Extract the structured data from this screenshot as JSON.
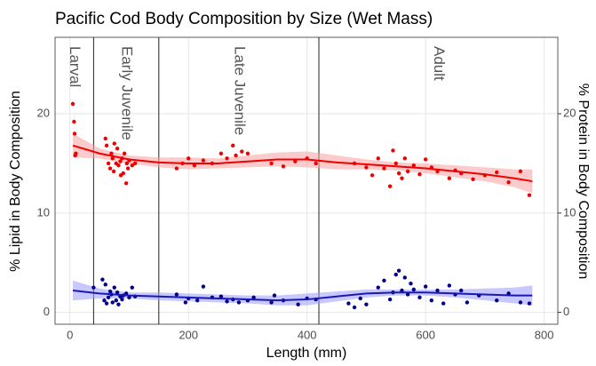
{
  "chart_data": {
    "type": "scatter",
    "title": "Pacific Cod Body Composition by Size (Wet Mass)",
    "xlabel": "Length (mm)",
    "ylabel": "% Lipid in Body Composition",
    "y2label": "% Protein in Body Composition",
    "xlim": [
      -25,
      823
    ],
    "ylim": [
      -1.2,
      27.7
    ],
    "y2lim": [
      -1.2,
      27.7
    ],
    "xticks": [
      0,
      200,
      400,
      600,
      800
    ],
    "yticks": [
      0,
      10,
      20
    ],
    "y2ticks": [
      0,
      10,
      20
    ],
    "grid": true,
    "vlines": [
      40,
      150,
      420
    ],
    "stage_labels": [
      "Larval",
      "Early Juvenile",
      "Late Juvenile",
      "Adult"
    ],
    "series": [
      {
        "color": "#f00000",
        "x": [
          5,
          7,
          8,
          10,
          9,
          60,
          62,
          65,
          68,
          70,
          72,
          74,
          75,
          78,
          80,
          82,
          85,
          86,
          88,
          90,
          92,
          95,
          96,
          98,
          100,
          105,
          110,
          180,
          190,
          200,
          210,
          225,
          240,
          255,
          265,
          275,
          280,
          290,
          300,
          340,
          360,
          380,
          400,
          415,
          480,
          500,
          510,
          520,
          530,
          540,
          545,
          550,
          555,
          560,
          565,
          570,
          580,
          590,
          600,
          610,
          620,
          640,
          650,
          660,
          680,
          700,
          720,
          740,
          760,
          775
        ],
        "values": [
          21,
          19.2,
          18,
          16,
          15.8,
          17.5,
          16.8,
          15,
          14.5,
          16,
          15.5,
          14.2,
          17,
          15,
          16.5,
          14.8,
          15.2,
          13.8,
          15.5,
          14,
          16,
          13,
          15,
          14.5,
          15.3,
          14.8,
          15,
          14.5,
          15,
          15.5,
          14.8,
          15.3,
          15,
          16,
          15.5,
          16.8,
          15.8,
          16.2,
          16,
          15,
          14.7,
          15.2,
          15.5,
          15,
          15,
          14.6,
          13.8,
          15.5,
          14.5,
          12.7,
          16.3,
          15,
          14,
          13.5,
          15.5,
          14.2,
          14.8,
          13.9,
          15.4,
          14.6,
          14.2,
          13.5,
          14.3,
          14,
          13.4,
          13.8,
          14.1,
          13.1,
          14.2,
          11.8
        ]
      },
      {
        "color": "#00008b",
        "x": [
          40,
          55,
          58,
          60,
          62,
          65,
          68,
          70,
          72,
          75,
          78,
          80,
          82,
          85,
          88,
          90,
          95,
          100,
          105,
          110,
          180,
          195,
          200,
          215,
          225,
          240,
          255,
          265,
          275,
          285,
          300,
          310,
          340,
          345,
          360,
          385,
          400,
          415,
          470,
          480,
          490,
          500,
          520,
          530,
          540,
          545,
          550,
          555,
          560,
          565,
          570,
          575,
          580,
          590,
          600,
          610,
          620,
          630,
          640,
          650,
          660,
          670,
          690,
          720,
          740,
          760,
          775
        ],
        "values": [
          2.5,
          3.3,
          1.2,
          2.8,
          0.9,
          1.5,
          2.1,
          1.8,
          1,
          2.5,
          1.2,
          2,
          0.8,
          1.6,
          1.3,
          1.7,
          1.9,
          1.5,
          2.5,
          1.6,
          1.8,
          1,
          1.4,
          1.2,
          2.6,
          1.5,
          1.6,
          1.1,
          1.3,
          1,
          1.2,
          1.5,
          1,
          1.7,
          1.2,
          0.8,
          1.4,
          1.3,
          0.9,
          0.5,
          1.4,
          0.8,
          2.5,
          3.2,
          1.3,
          2,
          3.8,
          4.2,
          2.2,
          3.5,
          1.8,
          2.9,
          2.3,
          1.5,
          2.6,
          1.2,
          2.2,
          0.9,
          2.7,
          1.8,
          2.2,
          1,
          1.7,
          1.2,
          1.9,
          1,
          0.9
        ]
      }
    ],
    "fits": [
      {
        "color": "#f00000",
        "band_color": "#f8a0a0",
        "x": [
          5,
          50,
          100,
          150,
          200,
          250,
          300,
          350,
          400,
          450,
          500,
          550,
          600,
          650,
          700,
          750,
          780
        ],
        "values": [
          16.8,
          16.0,
          15.4,
          15.1,
          15.0,
          15.0,
          15.2,
          15.4,
          15.4,
          15.1,
          14.9,
          14.7,
          14.5,
          14.2,
          13.9,
          13.5,
          13.2
        ],
        "lower": [
          15.6,
          15.5,
          15.0,
          14.6,
          14.4,
          14.5,
          14.6,
          14.7,
          14.6,
          14.4,
          14.4,
          14.3,
          14.0,
          13.6,
          13.2,
          12.6,
          12.0
        ],
        "upper": [
          18.0,
          16.5,
          15.8,
          15.6,
          15.6,
          15.5,
          15.8,
          16.1,
          16.2,
          15.8,
          15.4,
          15.1,
          15.0,
          14.8,
          14.6,
          14.4,
          14.4
        ]
      },
      {
        "color": "#1a1ab0",
        "band_color": "#9a9aff",
        "x": [
          5,
          50,
          100,
          150,
          200,
          250,
          300,
          350,
          400,
          450,
          500,
          550,
          600,
          650,
          700,
          750,
          780
        ],
        "values": [
          2.2,
          1.9,
          1.7,
          1.6,
          1.5,
          1.4,
          1.3,
          1.2,
          1.3,
          1.6,
          1.9,
          2.0,
          2.0,
          1.9,
          1.8,
          1.7,
          1.7
        ],
        "lower": [
          1.2,
          1.4,
          1.4,
          1.2,
          1.1,
          1.0,
          0.9,
          0.7,
          0.7,
          1.1,
          1.5,
          1.7,
          1.7,
          1.5,
          1.2,
          0.9,
          0.7
        ],
        "upper": [
          3.2,
          2.4,
          2.0,
          2.0,
          1.9,
          1.8,
          1.7,
          1.7,
          1.9,
          2.1,
          2.3,
          2.3,
          2.3,
          2.3,
          2.4,
          2.5,
          2.7
        ]
      }
    ]
  }
}
